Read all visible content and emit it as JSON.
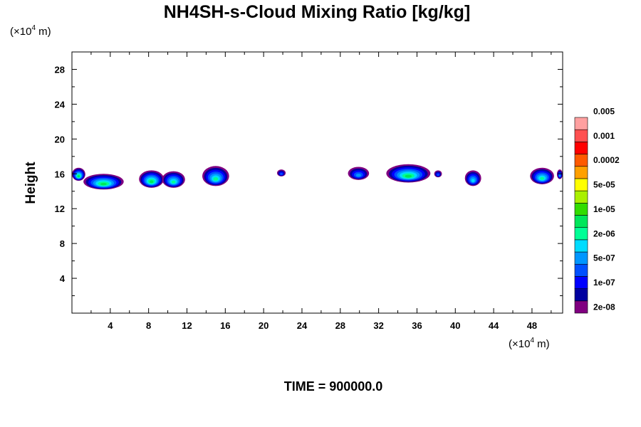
{
  "chart_data": {
    "type": "heatmap",
    "title": "NH4SH-s-Cloud Mixing Ratio [kg/kg]",
    "ylabel": "Height",
    "xlabel": "",
    "x_unit": {
      "prefix": "(×10",
      "exp": "4",
      "suffix": " m)"
    },
    "y_unit": {
      "prefix": "(×10",
      "exp": "4",
      "suffix": " m)"
    },
    "xlim": [
      0,
      51.2
    ],
    "ylim": [
      0,
      30
    ],
    "x_ticks": [
      "4",
      "8",
      "12",
      "16",
      "20",
      "24",
      "28",
      "32",
      "36",
      "40",
      "44",
      "48"
    ],
    "y_ticks": [
      "4",
      "8",
      "12",
      "16",
      "20",
      "24",
      "28"
    ],
    "colorbar": {
      "colors": [
        "#800080",
        "#0000a0",
        "#0000ff",
        "#0050ff",
        "#0096ff",
        "#00dcff",
        "#00ff96",
        "#00e65a",
        "#32dc00",
        "#aaf000",
        "#ffff00",
        "#ffa000",
        "#ff5a00",
        "#ff0000",
        "#ff5050",
        "#ffa0a0"
      ],
      "labels": [
        "2e-08",
        "1e-07",
        "5e-07",
        "2e-06",
        "1e-05",
        "5e-05",
        "0.0002",
        "0.001",
        "0.005"
      ]
    },
    "clouds": [
      {
        "x0": 0,
        "x1": 1.4,
        "base": 15.2,
        "top": 16.7,
        "max_level": 7
      },
      {
        "x0": 1.2,
        "x1": 5.4,
        "base": 14.2,
        "top": 16.0,
        "max_level": 7
      },
      {
        "x0": 7.0,
        "x1": 9.6,
        "base": 14.4,
        "top": 16.4,
        "max_level": 7
      },
      {
        "x0": 9.4,
        "x1": 11.8,
        "base": 14.4,
        "top": 16.3,
        "max_level": 6
      },
      {
        "x0": 13.6,
        "x1": 16.4,
        "base": 14.6,
        "top": 16.9,
        "max_level": 6
      },
      {
        "x0": 21.4,
        "x1": 22.3,
        "base": 15.7,
        "top": 16.5,
        "max_level": 3
      },
      {
        "x0": 28.8,
        "x1": 31.0,
        "base": 15.3,
        "top": 16.8,
        "max_level": 4
      },
      {
        "x0": 32.8,
        "x1": 37.4,
        "base": 15.0,
        "top": 17.1,
        "max_level": 7
      },
      {
        "x0": 37.8,
        "x1": 38.6,
        "base": 15.6,
        "top": 16.4,
        "max_level": 3
      },
      {
        "x0": 41.0,
        "x1": 42.7,
        "base": 14.6,
        "top": 16.4,
        "max_level": 5
      },
      {
        "x0": 47.8,
        "x1": 50.3,
        "base": 14.8,
        "top": 16.7,
        "max_level": 6
      },
      {
        "x0": 50.6,
        "x1": 51.2,
        "base": 15.4,
        "top": 16.5,
        "max_level": 4
      }
    ]
  },
  "time_label": "TIME = 900000.0"
}
